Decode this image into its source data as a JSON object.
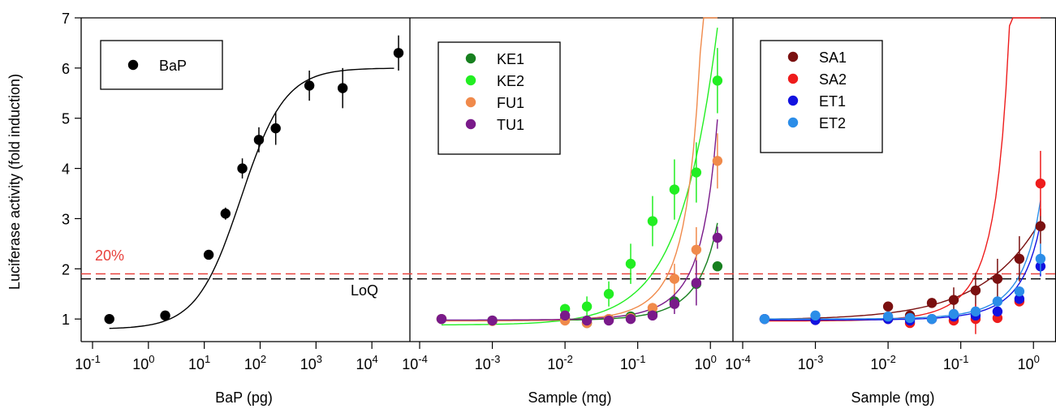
{
  "figure": {
    "y_axis_label": "Luciferase activity (fold induction)",
    "threshold_label": "20%",
    "loq_label": "LoQ",
    "threshold_value": 1.9,
    "loq_value": 1.8,
    "colors": {
      "threshold": "#e8413c",
      "loq": "#000000",
      "frame": "#000000"
    }
  },
  "chart_data": [
    {
      "type": "scatter",
      "xlabel": "BaP (pg)",
      "ylabel": "Luciferase activity (fold induction)",
      "xscale": "log",
      "xlim": [
        0.1,
        30000
      ],
      "ylim": [
        0.55,
        7
      ],
      "xticks": [
        {
          "value": 0.1,
          "base": "10",
          "exp": "-1"
        },
        {
          "value": 1,
          "base": "10",
          "exp": "0"
        },
        {
          "value": 10,
          "base": "10",
          "exp": "1"
        },
        {
          "value": 100,
          "base": "10",
          "exp": "2"
        },
        {
          "value": 1000,
          "base": "10",
          "exp": "3"
        },
        {
          "value": 10000,
          "base": "10",
          "exp": "4"
        }
      ],
      "yticks": [
        1,
        2,
        3,
        4,
        5,
        6,
        7
      ],
      "legend_position": "top-left",
      "series": [
        {
          "name": "BaP",
          "color": "#000000",
          "points": [
            {
              "x": 0.2,
              "y": 1.0,
              "err": 0.05
            },
            {
              "x": 2,
              "y": 1.07,
              "err": 0.05
            },
            {
              "x": 12,
              "y": 2.28,
              "err": 0.08
            },
            {
              "x": 24,
              "y": 3.1,
              "err": 0.12
            },
            {
              "x": 48,
              "y": 4.0,
              "err": 0.2
            },
            {
              "x": 95,
              "y": 4.57,
              "err": 0.25
            },
            {
              "x": 190,
              "y": 4.8,
              "err": 0.33
            },
            {
              "x": 760,
              "y": 5.65,
              "err": 0.3
            },
            {
              "x": 3000,
              "y": 5.6,
              "err": 0.4
            },
            {
              "x": 30000,
              "y": 6.3,
              "err": 0.35
            }
          ],
          "curve": {
            "model": "hill",
            "bottom": 0.8,
            "top": 6.0,
            "ec50": 45,
            "hill": 1.1,
            "x_from": 0.2,
            "x_to": 25000
          }
        }
      ]
    },
    {
      "type": "scatter",
      "xlabel": "Sample (mg)",
      "xscale": "log",
      "xlim": [
        0.0001,
        1.5
      ],
      "ylim": [
        0.55,
        7
      ],
      "xticks": [
        {
          "value": 0.0001,
          "base": "10",
          "exp": "-4"
        },
        {
          "value": 0.001,
          "base": "10",
          "exp": "-3"
        },
        {
          "value": 0.01,
          "base": "10",
          "exp": "-2"
        },
        {
          "value": 0.1,
          "base": "10",
          "exp": "-1"
        },
        {
          "value": 1,
          "base": "10",
          "exp": "0"
        }
      ],
      "legend_position": "top-left",
      "series": [
        {
          "name": "KE1",
          "color": "#17801f",
          "points": [
            {
              "x": 0.0002,
              "y": 1.0
            },
            {
              "x": 0.001,
              "y": 0.97
            },
            {
              "x": 0.01,
              "y": 1.0
            },
            {
              "x": 0.02,
              "y": 0.92,
              "err": 0.05
            },
            {
              "x": 0.04,
              "y": 1.0
            },
            {
              "x": 0.08,
              "y": 1.05
            },
            {
              "x": 0.16,
              "y": 1.1
            },
            {
              "x": 0.32,
              "y": 1.35
            },
            {
              "x": 0.64,
              "y": 1.7
            },
            {
              "x": 1.25,
              "y": 2.05
            }
          ],
          "curve": {
            "model": "exp",
            "base": 0.97,
            "k": 0.88,
            "x_from": 0.0002,
            "x_to": 1.25
          }
        },
        {
          "name": "KE2",
          "color": "#22ee22",
          "points": [
            {
              "x": 0.01,
              "y": 1.2,
              "err": 0.1
            },
            {
              "x": 0.02,
              "y": 1.25,
              "err": 0.2
            },
            {
              "x": 0.04,
              "y": 1.5,
              "err": 0.25
            },
            {
              "x": 0.08,
              "y": 2.1,
              "err": 0.4
            },
            {
              "x": 0.16,
              "y": 2.95,
              "err": 0.5
            },
            {
              "x": 0.32,
              "y": 3.58,
              "err": 0.6
            },
            {
              "x": 0.64,
              "y": 3.92,
              "err": 0.6
            },
            {
              "x": 1.25,
              "y": 5.75,
              "err": 0.65
            }
          ],
          "curve": {
            "model": "power",
            "base": 0.88,
            "a": 4.9,
            "p": 0.85,
            "x_from": 0.0002,
            "x_to": 1.25
          }
        },
        {
          "name": "FU1",
          "color": "#f08a4b",
          "points": [
            {
              "x": 0.0002,
              "y": 1.0
            },
            {
              "x": 0.001,
              "y": 0.96
            },
            {
              "x": 0.01,
              "y": 0.97
            },
            {
              "x": 0.02,
              "y": 0.92
            },
            {
              "x": 0.04,
              "y": 1.0
            },
            {
              "x": 0.08,
              "y": 1.02
            },
            {
              "x": 0.16,
              "y": 1.22,
              "err": 0.1
            },
            {
              "x": 0.32,
              "y": 1.8,
              "err": 0.3
            },
            {
              "x": 0.64,
              "y": 2.38,
              "err": 0.45
            },
            {
              "x": 1.25,
              "y": 4.15,
              "err": 0.55
            }
          ],
          "curve": {
            "model": "exp",
            "base": 0.96,
            "k": 2.6,
            "x_from": 0.0002,
            "x_to": 1.25
          }
        },
        {
          "name": "TU1",
          "color": "#7a1a8a",
          "points": [
            {
              "x": 0.0002,
              "y": 1.0
            },
            {
              "x": 0.001,
              "y": 0.97
            },
            {
              "x": 0.01,
              "y": 1.07
            },
            {
              "x": 0.02,
              "y": 0.97
            },
            {
              "x": 0.04,
              "y": 0.97
            },
            {
              "x": 0.08,
              "y": 1.0
            },
            {
              "x": 0.16,
              "y": 1.07,
              "err": 0.1
            },
            {
              "x": 0.32,
              "y": 1.3,
              "err": 0.2
            },
            {
              "x": 0.64,
              "y": 1.72,
              "err": 0.45
            },
            {
              "x": 1.25,
              "y": 2.62,
              "err": 0.22
            }
          ],
          "curve": {
            "model": "exp",
            "base": 0.98,
            "k": 1.3,
            "x_from": 0.0002,
            "x_to": 1.25
          }
        }
      ]
    },
    {
      "type": "scatter",
      "xlabel": "Sample (mg)",
      "xscale": "log",
      "xlim": [
        0.0001,
        1.5
      ],
      "ylim": [
        0.55,
        7
      ],
      "xticks": [
        {
          "value": 0.0001,
          "base": "10",
          "exp": "-4"
        },
        {
          "value": 0.001,
          "base": "10",
          "exp": "-3"
        },
        {
          "value": 0.01,
          "base": "10",
          "exp": "-2"
        },
        {
          "value": 0.1,
          "base": "10",
          "exp": "-1"
        },
        {
          "value": 1,
          "base": "10",
          "exp": "0"
        }
      ],
      "legend_position": "top-left",
      "series": [
        {
          "name": "SA1",
          "color": "#7a1010",
          "points": [
            {
              "x": 0.01,
              "y": 1.25
            },
            {
              "x": 0.02,
              "y": 1.07
            },
            {
              "x": 0.04,
              "y": 1.32
            },
            {
              "x": 0.08,
              "y": 1.38,
              "err": 0.25
            },
            {
              "x": 0.16,
              "y": 1.57,
              "err": 0.35
            },
            {
              "x": 0.32,
              "y": 1.8,
              "err": 0.4
            },
            {
              "x": 0.64,
              "y": 2.2,
              "err": 0.45
            },
            {
              "x": 1.25,
              "y": 2.85,
              "err": 0.35
            }
          ],
          "curve": {
            "model": "power",
            "base": 0.98,
            "a": 1.75,
            "p": 0.55,
            "x_from": 0.0002,
            "x_to": 1.25
          }
        },
        {
          "name": "SA2",
          "color": "#ee1c1c",
          "points": [
            {
              "x": 0.0002,
              "y": 1.0
            },
            {
              "x": 0.001,
              "y": 0.98
            },
            {
              "x": 0.01,
              "y": 1.0
            },
            {
              "x": 0.02,
              "y": 0.92
            },
            {
              "x": 0.04,
              "y": 1.0
            },
            {
              "x": 0.08,
              "y": 0.97
            },
            {
              "x": 0.16,
              "y": 1.0,
              "err": 0.3
            },
            {
              "x": 0.32,
              "y": 1.02
            },
            {
              "x": 0.64,
              "y": 1.35
            },
            {
              "x": 1.25,
              "y": 3.7,
              "err": 0.65
            }
          ],
          "curve": {
            "model": "exp",
            "base": 0.96,
            "k": 4.2,
            "x_from": 0.0002,
            "x_to": 1.25
          }
        },
        {
          "name": "ET1",
          "color": "#1212e0",
          "points": [
            {
              "x": 0.0002,
              "y": 1.0
            },
            {
              "x": 0.001,
              "y": 0.98
            },
            {
              "x": 0.01,
              "y": 1.0
            },
            {
              "x": 0.02,
              "y": 0.97
            },
            {
              "x": 0.04,
              "y": 1.0
            },
            {
              "x": 0.08,
              "y": 1.05
            },
            {
              "x": 0.16,
              "y": 1.07
            },
            {
              "x": 0.32,
              "y": 1.15
            },
            {
              "x": 0.64,
              "y": 1.4
            },
            {
              "x": 1.25,
              "y": 2.05,
              "err": 0.2
            }
          ],
          "curve": {
            "model": "exp",
            "base": 0.98,
            "k": 0.87,
            "x_from": 0.0002,
            "x_to": 1.25
          }
        },
        {
          "name": "ET2",
          "color": "#2b8de8",
          "points": [
            {
              "x": 0.0002,
              "y": 1.0
            },
            {
              "x": 0.001,
              "y": 1.07
            },
            {
              "x": 0.01,
              "y": 1.05
            },
            {
              "x": 0.02,
              "y": 1.02
            },
            {
              "x": 0.04,
              "y": 1.0
            },
            {
              "x": 0.08,
              "y": 1.1
            },
            {
              "x": 0.16,
              "y": 1.15
            },
            {
              "x": 0.32,
              "y": 1.35
            },
            {
              "x": 0.64,
              "y": 1.55
            },
            {
              "x": 1.25,
              "y": 2.2,
              "err": 0.3
            }
          ],
          "curve": {
            "model": "exp",
            "base": 1.0,
            "k": 0.97,
            "x_from": 0.0002,
            "x_to": 1.25
          }
        }
      ]
    }
  ]
}
